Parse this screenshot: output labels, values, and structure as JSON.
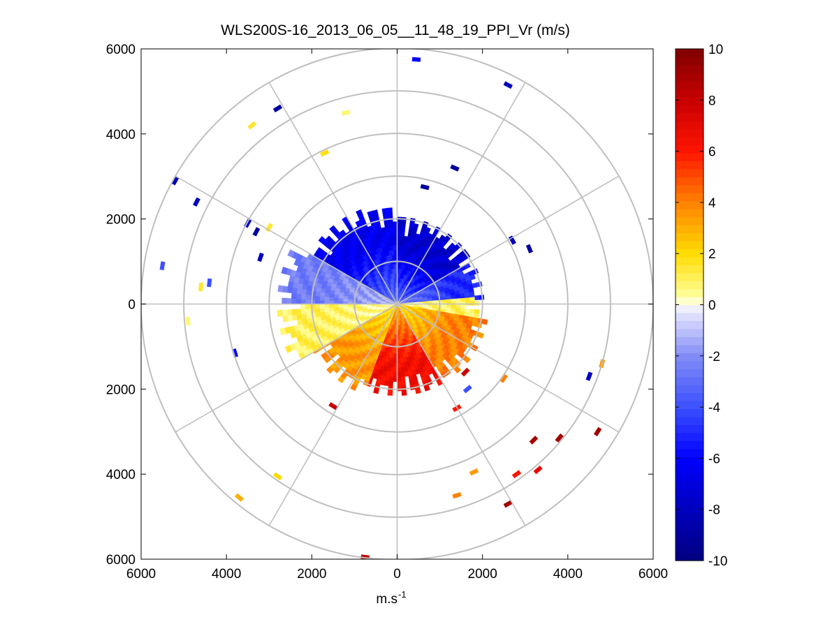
{
  "chart_data": {
    "type": "polar-ppi",
    "title": "WLS200S-16_2013_06_05__11_48_19_PPI_Vr (m/s)",
    "xlabel_base": "m.s",
    "xlabel_exp": "-1",
    "xlim": [
      -6000,
      6000
    ],
    "ylim": [
      -6000,
      6000
    ],
    "x_ticks": [
      -6000,
      -4000,
      -2000,
      0,
      2000,
      4000,
      6000
    ],
    "x_tick_labels": [
      "6000",
      "4000",
      "2000",
      "0",
      "2000",
      "4000",
      "6000"
    ],
    "y_ticks": [
      6000,
      4000,
      2000,
      0,
      -2000,
      -4000,
      -6000
    ],
    "y_tick_labels": [
      "6000",
      "4000",
      "2000",
      "0",
      "2000",
      "4000",
      "6000"
    ],
    "range_rings": [
      1000,
      2000,
      3000,
      4000,
      5000,
      6000
    ],
    "spoke_angles_deg": [
      0,
      30,
      60,
      90,
      120,
      150,
      180,
      210,
      240,
      270,
      300,
      330
    ],
    "colorbar": {
      "min": -10,
      "max": 10,
      "ticks": [
        10,
        8,
        6,
        4,
        2,
        0,
        -2,
        -4,
        -6,
        -8,
        -10
      ],
      "tick_labels": [
        "10",
        "8",
        "6",
        "4",
        "2",
        "0",
        "-2",
        "-4",
        "-6",
        "-8",
        "-10"
      ]
    },
    "velocity_field": {
      "description": "radial velocity sectors (azimuth in deg from north, clockwise; range in m)",
      "sectors": [
        {
          "az_from": 300,
          "az_to": 360,
          "r_max": 2300,
          "v": -6.5
        },
        {
          "az_from": 0,
          "az_to": 60,
          "r_max": 2000,
          "v": -7.5
        },
        {
          "az_from": 60,
          "az_to": 85,
          "r_max": 2000,
          "v": -5.0
        },
        {
          "az_from": 270,
          "az_to": 300,
          "r_max": 2800,
          "v": -2.5
        },
        {
          "az_from": 85,
          "az_to": 100,
          "r_max": 1900,
          "v": 1.0
        },
        {
          "az_from": 100,
          "az_to": 150,
          "r_max": 2100,
          "v": 4.0
        },
        {
          "az_from": 150,
          "az_to": 200,
          "r_max": 2100,
          "v": 6.5
        },
        {
          "az_from": 200,
          "az_to": 240,
          "r_max": 2200,
          "v": 3.5
        },
        {
          "az_from": 240,
          "az_to": 270,
          "r_max": 2800,
          "v": 1.0
        }
      ],
      "scatter_points": [
        {
          "x": 450,
          "y": 5750,
          "v": -6
        },
        {
          "x": 2600,
          "y": 5150,
          "v": -8
        },
        {
          "x": -2800,
          "y": 4600,
          "v": -9
        },
        {
          "x": -3400,
          "y": 4200,
          "v": 1.5
        },
        {
          "x": -1200,
          "y": 4500,
          "v": 0.8
        },
        {
          "x": -1700,
          "y": 3550,
          "v": 1.8
        },
        {
          "x": 1350,
          "y": 3200,
          "v": -9
        },
        {
          "x": 650,
          "y": 2750,
          "v": -9
        },
        {
          "x": -5200,
          "y": 2900,
          "v": -8
        },
        {
          "x": -4700,
          "y": 2400,
          "v": -8
        },
        {
          "x": -3500,
          "y": 1900,
          "v": -8
        },
        {
          "x": -3000,
          "y": 1800,
          "v": 1.5
        },
        {
          "x": -3300,
          "y": 1700,
          "v": -9
        },
        {
          "x": 2700,
          "y": 1500,
          "v": -8
        },
        {
          "x": 3100,
          "y": 1300,
          "v": -9
        },
        {
          "x": -3200,
          "y": 1100,
          "v": -8
        },
        {
          "x": -5500,
          "y": 900,
          "v": -4
        },
        {
          "x": -4400,
          "y": 500,
          "v": -4
        },
        {
          "x": -4600,
          "y": 400,
          "v": 1.5
        },
        {
          "x": -4900,
          "y": -400,
          "v": 0.8
        },
        {
          "x": -3800,
          "y": -1150,
          "v": -6
        },
        {
          "x": -1500,
          "y": -2400,
          "v": 8
        },
        {
          "x": 1600,
          "y": -1600,
          "v": 8
        },
        {
          "x": 1650,
          "y": -2000,
          "v": -4
        },
        {
          "x": 1400,
          "y": -2450,
          "v": 6
        },
        {
          "x": 2500,
          "y": -1750,
          "v": 4
        },
        {
          "x": 4500,
          "y": -1700,
          "v": -8
        },
        {
          "x": 4800,
          "y": -1400,
          "v": 3.5
        },
        {
          "x": 3200,
          "y": -3200,
          "v": 9
        },
        {
          "x": 3800,
          "y": -3150,
          "v": 9
        },
        {
          "x": 4700,
          "y": -3000,
          "v": 9
        },
        {
          "x": 2800,
          "y": -4000,
          "v": 6
        },
        {
          "x": 3300,
          "y": -3900,
          "v": 7
        },
        {
          "x": 1800,
          "y": -3950,
          "v": 3.5
        },
        {
          "x": 1400,
          "y": -4500,
          "v": 4
        },
        {
          "x": 2600,
          "y": -4700,
          "v": 9
        },
        {
          "x": -2800,
          "y": -4050,
          "v": 2
        },
        {
          "x": -3700,
          "y": -4550,
          "v": 3
        },
        {
          "x": -750,
          "y": -5950,
          "v": 8
        }
      ]
    }
  }
}
